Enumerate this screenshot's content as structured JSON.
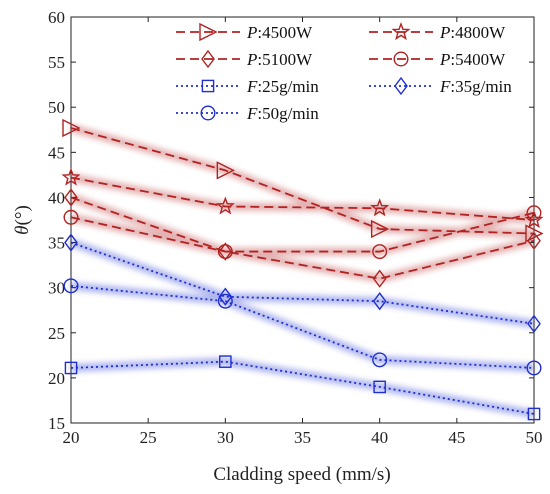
{
  "chart_data": {
    "type": "line",
    "xlabel": "Cladding speed (mm/s)",
    "ylabel_symbol": "θ",
    "ylabel_unit": "(°)",
    "xlim": [
      20,
      50
    ],
    "ylim": [
      15,
      60
    ],
    "xticks": [
      20,
      25,
      30,
      35,
      40,
      45,
      50
    ],
    "yticks": [
      15,
      20,
      25,
      30,
      35,
      40,
      45,
      50,
      55,
      60
    ],
    "x": [
      20,
      30,
      40,
      50
    ],
    "grid": false,
    "legend_position": "top-right",
    "series": [
      {
        "name": "P:4500W",
        "prefix": "P",
        "suffix": ":4500W",
        "marker": "triangle-right",
        "style": "dashed",
        "color": "#b22222",
        "values": [
          47.7,
          43.0,
          36.5,
          36.0
        ]
      },
      {
        "name": "P:4800W",
        "prefix": "P",
        "suffix": ":4800W",
        "marker": "star",
        "style": "dashed",
        "color": "#b22222",
        "values": [
          42.2,
          39.0,
          38.8,
          37.5
        ]
      },
      {
        "name": "P:5100W",
        "prefix": "P",
        "suffix": ":5100W",
        "marker": "diamond",
        "style": "dashed",
        "color": "#b22222",
        "values": [
          40.0,
          34.0,
          31.0,
          35.2
        ]
      },
      {
        "name": "P:5400W",
        "prefix": "P",
        "suffix": ":5400W",
        "marker": "circle",
        "style": "dashed",
        "color": "#b22222",
        "values": [
          37.8,
          34.0,
          34.0,
          38.3
        ]
      },
      {
        "name": "F:25g/min",
        "prefix": "F",
        "suffix": ":25g/min",
        "marker": "square",
        "style": "dotted",
        "color": "#1f2fd0",
        "values": [
          21.1,
          21.8,
          19.0,
          16.0
        ]
      },
      {
        "name": "F:35g/min",
        "prefix": "F",
        "suffix": ":35g/min",
        "marker": "diamond",
        "style": "dotted",
        "color": "#1f2fd0",
        "values": [
          35.0,
          29.0,
          28.5,
          26.0
        ]
      },
      {
        "name": "F:50g/min",
        "prefix": "F",
        "suffix": ":50g/min",
        "marker": "circle",
        "style": "dotted",
        "color": "#1f2fd0",
        "values": [
          30.2,
          28.5,
          22.0,
          21.1
        ]
      }
    ]
  }
}
